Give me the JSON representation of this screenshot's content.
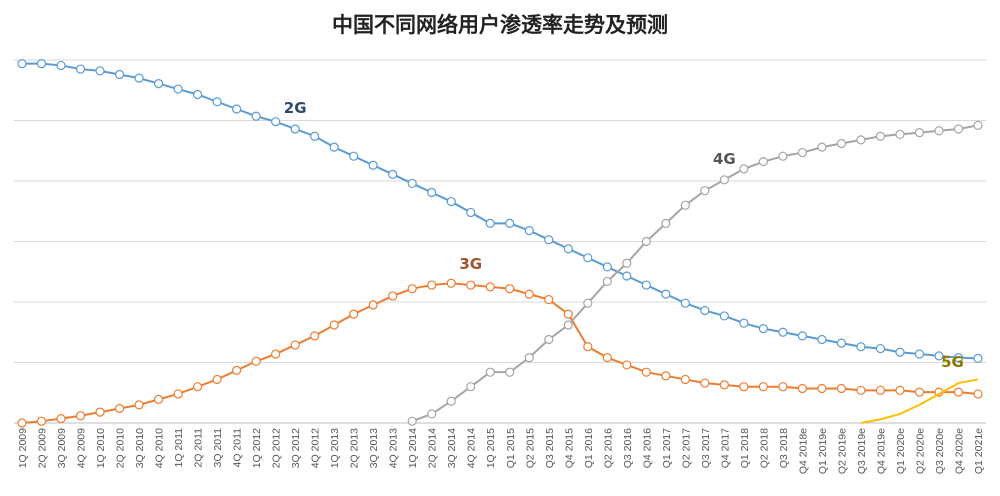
{
  "chart_data": {
    "type": "line",
    "title": "中国不同网络用户渗透率走势及预测",
    "xlabel": "",
    "ylabel": "",
    "ylim": [
      0,
      1
    ],
    "grid": true,
    "y_tick_count": 7,
    "categories": [
      "1Q 2009",
      "2Q 2009",
      "3Q 2009",
      "4Q 2009",
      "1Q 2010",
      "2Q 2010",
      "3Q 2010",
      "4Q 2010",
      "1Q 2011",
      "2Q 2011",
      "3Q 2011",
      "4Q 2011",
      "1Q 2012",
      "2Q 2012",
      "3Q 2012",
      "4Q 2012",
      "1Q 2013",
      "2Q 2013",
      "3Q 2013",
      "4Q 2013",
      "1Q 2014",
      "2Q 2014",
      "3Q 2014",
      "4Q 2014",
      "1Q 2015",
      "Q1 2015",
      "Q2 2015",
      "Q3 2015",
      "Q4 2015",
      "Q1 2016",
      "Q2 2016",
      "Q3 2016",
      "Q4 2016",
      "Q1 2017",
      "Q2 2017",
      "Q3 2017",
      "Q4 2017",
      "Q1 2018",
      "Q2 2018",
      "Q3 2018",
      "Q4 2018e",
      "Q1 2019e",
      "Q2 2019e",
      "Q3 2019e",
      "Q4 2019e",
      "Q1 2020e",
      "Q2 2020e",
      "Q3 2020e",
      "Q4 2020e",
      "Q1 2021e"
    ],
    "series": [
      {
        "name": "2G",
        "color": "#5b9bd5",
        "label_color": "#2e4a6b",
        "label_anchor_index": 14,
        "values": [
          0.99,
          0.99,
          0.985,
          0.975,
          0.97,
          0.96,
          0.95,
          0.935,
          0.92,
          0.905,
          0.885,
          0.865,
          0.845,
          0.83,
          0.81,
          0.79,
          0.76,
          0.735,
          0.71,
          0.685,
          0.66,
          0.635,
          0.61,
          0.58,
          0.55,
          0.55,
          0.53,
          0.505,
          0.48,
          0.455,
          0.43,
          0.405,
          0.38,
          0.355,
          0.33,
          0.31,
          0.295,
          0.275,
          0.26,
          0.25,
          0.24,
          0.23,
          0.22,
          0.21,
          0.205,
          0.195,
          0.19,
          0.185,
          0.18,
          0.178
        ]
      },
      {
        "name": "3G",
        "color": "#ed7d31",
        "label_color": "#a0522d",
        "label_anchor_index": 23,
        "values": [
          0.0,
          0.005,
          0.012,
          0.02,
          0.03,
          0.04,
          0.05,
          0.065,
          0.08,
          0.1,
          0.12,
          0.145,
          0.17,
          0.19,
          0.215,
          0.24,
          0.27,
          0.3,
          0.325,
          0.35,
          0.37,
          0.38,
          0.385,
          0.38,
          0.375,
          0.37,
          0.355,
          0.34,
          0.3,
          0.21,
          0.18,
          0.16,
          0.14,
          0.13,
          0.12,
          0.11,
          0.105,
          0.1,
          0.1,
          0.1,
          0.095,
          0.095,
          0.095,
          0.09,
          0.09,
          0.09,
          0.085,
          0.085,
          0.085,
          0.08
        ]
      },
      {
        "name": "4G",
        "color": "#a5a5a5",
        "label_color": "#555555",
        "label_anchor_index": 36,
        "values": [
          null,
          null,
          null,
          null,
          null,
          null,
          null,
          null,
          null,
          null,
          null,
          null,
          null,
          null,
          null,
          null,
          null,
          null,
          null,
          null,
          0.005,
          0.025,
          0.06,
          0.1,
          0.14,
          0.14,
          0.18,
          0.23,
          0.27,
          0.33,
          0.39,
          0.44,
          0.5,
          0.55,
          0.6,
          0.64,
          0.67,
          0.7,
          0.72,
          0.735,
          0.745,
          0.76,
          0.77,
          0.78,
          0.79,
          0.795,
          0.8,
          0.805,
          0.81,
          0.82
        ]
      },
      {
        "name": "5G",
        "color": "#ffc000",
        "label_color": "#8a7a00",
        "label_anchor_index": 48,
        "markers": false,
        "values": [
          null,
          null,
          null,
          null,
          null,
          null,
          null,
          null,
          null,
          null,
          null,
          null,
          null,
          null,
          null,
          null,
          null,
          null,
          null,
          null,
          null,
          null,
          null,
          null,
          null,
          null,
          null,
          null,
          null,
          null,
          null,
          null,
          null,
          null,
          null,
          null,
          null,
          null,
          null,
          null,
          null,
          null,
          null,
          0.0,
          0.01,
          0.025,
          0.05,
          0.08,
          0.11,
          0.12
        ]
      }
    ]
  }
}
